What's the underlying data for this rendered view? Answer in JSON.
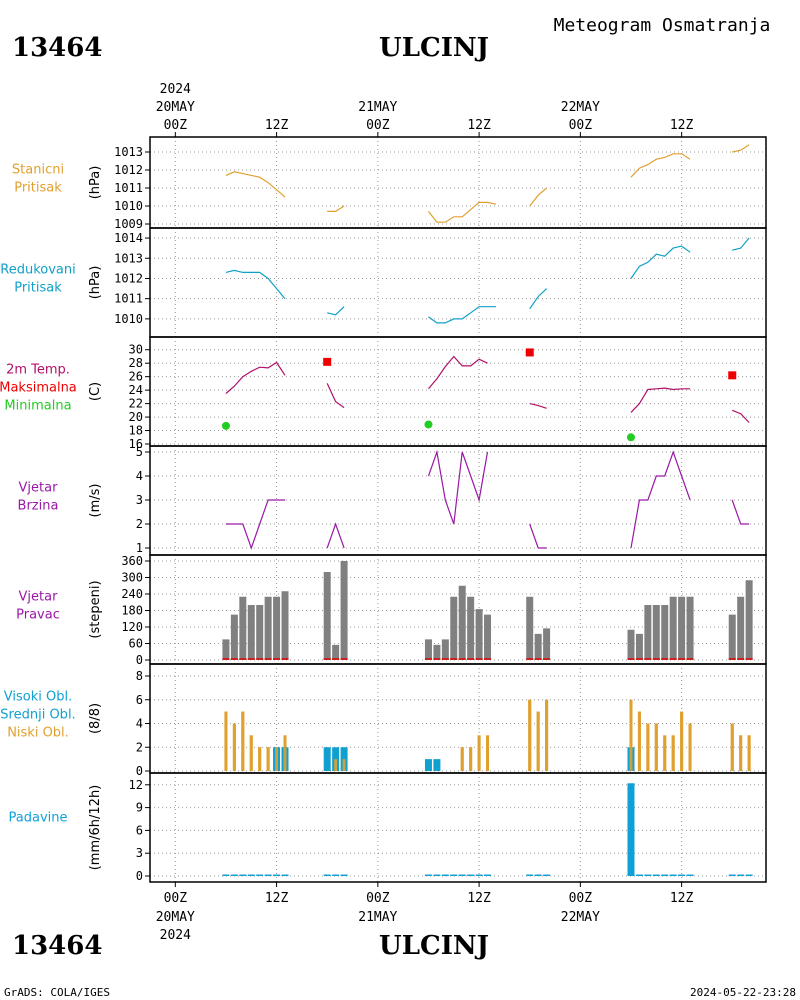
{
  "header": {
    "station_id": "13464",
    "station_name": "ULCINJ",
    "product": "Meteogram Osmatranja"
  },
  "footer": {
    "station_id": "13464",
    "station_name": "ULCINJ",
    "credit": "GrADS: COLA/IGES",
    "timestamp": "2024-05-22-23:28"
  },
  "time_axis": {
    "year": "2024",
    "ticks": [
      {
        "hour": 0,
        "label": "00Z",
        "date": "20MAY",
        "year": "2024"
      },
      {
        "hour": 12,
        "label": "12Z"
      },
      {
        "hour": 24,
        "label": "00Z",
        "date": "21MAY"
      },
      {
        "hour": 36,
        "label": "12Z"
      },
      {
        "hour": 48,
        "label": "00Z",
        "date": "22MAY"
      },
      {
        "hour": 60,
        "label": "12Z"
      }
    ],
    "range_hours": [
      -3,
      70
    ]
  },
  "colors": {
    "pressure_station": "#e0a030",
    "pressure_reduced": "#10a0c8",
    "temperature": "#b0106a",
    "tmax": "#ee0000",
    "tmin": "#22cc22",
    "wind": "#9b18a8",
    "wind_dir_bar": "#808080",
    "wind_dir_base": "#cc2020",
    "cloud_low": "#e0a030",
    "cloud_mid_high": "#10a0d0",
    "precip": "#10a0d8"
  },
  "chart_data": [
    {
      "type": "line",
      "title_lines": [
        "Stanicni",
        "Pritisak"
      ],
      "ylabel": "(hPa)",
      "ylim": [
        1009,
        1013.5
      ],
      "yticks": [
        1009,
        1010,
        1011,
        1012,
        1013
      ],
      "series": [
        {
          "segments": [
            [
              [
                6,
                1011.7
              ],
              [
                7,
                1011.9
              ],
              [
                8,
                1011.8
              ],
              [
                9,
                1011.7
              ],
              [
                10,
                1011.6
              ],
              [
                11,
                1011.3
              ],
              [
                12,
                1010.9
              ],
              [
                13,
                1010.5
              ]
            ],
            [
              [
                18,
                1009.7
              ],
              [
                19,
                1009.7
              ],
              [
                20,
                1010.0
              ]
            ],
            [
              [
                30,
                1009.7
              ],
              [
                31,
                1009.1
              ],
              [
                32,
                1009.1
              ],
              [
                33,
                1009.4
              ],
              [
                34,
                1009.4
              ],
              [
                35,
                1009.8
              ],
              [
                36,
                1010.2
              ],
              [
                37,
                1010.2
              ],
              [
                38,
                1010.1
              ]
            ],
            [
              [
                42,
                1010.0
              ],
              [
                43,
                1010.6
              ],
              [
                44,
                1011.0
              ]
            ],
            [
              [
                54,
                1011.6
              ],
              [
                55,
                1012.1
              ],
              [
                56,
                1012.3
              ],
              [
                57,
                1012.6
              ],
              [
                58,
                1012.7
              ],
              [
                59,
                1012.9
              ],
              [
                60,
                1012.9
              ],
              [
                61,
                1012.6
              ]
            ],
            [
              [
                66,
                1013.0
              ],
              [
                67,
                1013.1
              ],
              [
                68,
                1013.4
              ]
            ]
          ]
        }
      ]
    },
    {
      "type": "line",
      "title_lines": [
        "Redukovani",
        "Pritisak"
      ],
      "ylabel": "(hPa)",
      "ylim": [
        1009.4,
        1014.2
      ],
      "yticks": [
        1010,
        1011,
        1012,
        1013,
        1014
      ],
      "series": [
        {
          "segments": [
            [
              [
                6,
                1012.3
              ],
              [
                7,
                1012.4
              ],
              [
                8,
                1012.3
              ],
              [
                9,
                1012.3
              ],
              [
                10,
                1012.3
              ],
              [
                11,
                1012.0
              ],
              [
                12,
                1011.5
              ],
              [
                13,
                1011.0
              ]
            ],
            [
              [
                18,
                1010.3
              ],
              [
                19,
                1010.2
              ],
              [
                20,
                1010.6
              ]
            ],
            [
              [
                30,
                1010.1
              ],
              [
                31,
                1009.8
              ],
              [
                32,
                1009.8
              ],
              [
                33,
                1010.0
              ],
              [
                34,
                1010.0
              ],
              [
                35,
                1010.3
              ],
              [
                36,
                1010.6
              ],
              [
                37,
                1010.6
              ],
              [
                38,
                1010.6
              ]
            ],
            [
              [
                42,
                1010.5
              ],
              [
                43,
                1011.1
              ],
              [
                44,
                1011.5
              ]
            ],
            [
              [
                54,
                1012.0
              ],
              [
                55,
                1012.6
              ],
              [
                56,
                1012.8
              ],
              [
                57,
                1013.2
              ],
              [
                58,
                1013.1
              ],
              [
                59,
                1013.5
              ],
              [
                60,
                1013.6
              ],
              [
                61,
                1013.3
              ]
            ],
            [
              [
                66,
                1013.4
              ],
              [
                67,
                1013.5
              ],
              [
                68,
                1014.0
              ]
            ]
          ]
        }
      ]
    },
    {
      "type": "line",
      "title_lines": [
        "2m Temp.",
        "Maksimalna",
        "Minimalna"
      ],
      "ylabel": "(C)",
      "ylim": [
        16,
        31
      ],
      "yticks": [
        16,
        18,
        20,
        22,
        24,
        26,
        28,
        30
      ],
      "series": [
        {
          "name": "2m Temp.",
          "segments": [
            [
              [
                6,
                23.5
              ],
              [
                7,
                24.6
              ],
              [
                8,
                26.0
              ],
              [
                9,
                26.8
              ],
              [
                10,
                27.4
              ],
              [
                11,
                27.3
              ],
              [
                12,
                28.1
              ],
              [
                13,
                26.2
              ]
            ],
            [
              [
                18,
                25.0
              ],
              [
                19,
                22.3
              ],
              [
                20,
                21.4
              ]
            ],
            [
              [
                30,
                24.2
              ],
              [
                31,
                25.7
              ],
              [
                32,
                27.5
              ],
              [
                33,
                29.0
              ],
              [
                34,
                27.6
              ],
              [
                35,
                27.6
              ],
              [
                36,
                28.6
              ],
              [
                37,
                28.0
              ]
            ],
            [
              [
                42,
                22.0
              ],
              [
                43,
                21.7
              ],
              [
                44,
                21.3
              ]
            ],
            [
              [
                54,
                20.7
              ],
              [
                55,
                22.0
              ],
              [
                56,
                24.1
              ],
              [
                57,
                24.2
              ],
              [
                58,
                24.3
              ],
              [
                59,
                24.1
              ],
              [
                60,
                24.2
              ],
              [
                61,
                24.2
              ]
            ],
            [
              [
                66,
                21.0
              ],
              [
                67,
                20.5
              ],
              [
                68,
                19.2
              ]
            ]
          ]
        }
      ],
      "tmax": [
        [
          18,
          28.2
        ],
        [
          42,
          29.6
        ],
        [
          66,
          26.2
        ]
      ],
      "tmin": [
        [
          6,
          18.7
        ],
        [
          30,
          18.9
        ],
        [
          54,
          17.0
        ]
      ]
    },
    {
      "type": "line",
      "title_lines": [
        "Vjetar",
        "Brzina"
      ],
      "ylabel": "(m/s)",
      "ylim": [
        1,
        5
      ],
      "yticks": [
        1,
        2,
        3,
        4,
        5
      ],
      "series": [
        {
          "segments": [
            [
              [
                6,
                2
              ],
              [
                7,
                2
              ],
              [
                8,
                2
              ],
              [
                9,
                1
              ],
              [
                10,
                2
              ],
              [
                11,
                3
              ],
              [
                12,
                3
              ],
              [
                13,
                3
              ]
            ],
            [
              [
                18,
                1
              ],
              [
                19,
                2
              ],
              [
                20,
                1
              ]
            ],
            [
              [
                30,
                4
              ],
              [
                31,
                5
              ],
              [
                32,
                3
              ],
              [
                33,
                2
              ],
              [
                34,
                5
              ],
              [
                35,
                4
              ],
              [
                36,
                3
              ],
              [
                37,
                5
              ]
            ],
            [
              [
                42,
                2
              ],
              [
                43,
                1
              ],
              [
                44,
                1
              ]
            ],
            [
              [
                54,
                1
              ],
              [
                55,
                3
              ],
              [
                56,
                3
              ],
              [
                57,
                4
              ],
              [
                58,
                4
              ],
              [
                59,
                5
              ],
              [
                60,
                4
              ],
              [
                61,
                3
              ]
            ],
            [
              [
                66,
                3
              ],
              [
                67,
                2
              ],
              [
                68,
                2
              ]
            ]
          ]
        }
      ]
    },
    {
      "type": "bar",
      "title_lines": [
        "Vjetar",
        "Pravac"
      ],
      "ylabel": "(stepeni)",
      "ylim": [
        0,
        360
      ],
      "yticks": [
        0,
        60,
        120,
        180,
        240,
        300,
        360
      ],
      "x": [
        6,
        7,
        8,
        9,
        10,
        11,
        12,
        13,
        18,
        19,
        20,
        30,
        31,
        32,
        33,
        34,
        35,
        36,
        37,
        42,
        43,
        44,
        54,
        55,
        56,
        57,
        58,
        59,
        60,
        61,
        66,
        67,
        68
      ],
      "values": [
        75,
        165,
        230,
        200,
        200,
        230,
        230,
        250,
        320,
        55,
        360,
        75,
        55,
        75,
        230,
        270,
        230,
        185,
        165,
        230,
        95,
        115,
        110,
        95,
        200,
        200,
        200,
        230,
        230,
        230,
        165,
        230,
        290
      ]
    },
    {
      "type": "bar",
      "title_lines": [
        "Visoki Obl.",
        "Srednji Obl.",
        "Niski Obl."
      ],
      "ylabel": "(8/8)",
      "ylim": [
        0,
        8
      ],
      "yticks": [
        0,
        2,
        4,
        6,
        8
      ],
      "series": [
        {
          "name": "Niski Obl.",
          "x": [
            6,
            7,
            8,
            9,
            10,
            11,
            12,
            13,
            19,
            20,
            34,
            35,
            36,
            37,
            42,
            43,
            44,
            54,
            55,
            56,
            57,
            58,
            59,
            60,
            61,
            66,
            67,
            68
          ],
          "values": [
            5,
            4,
            5,
            3,
            2,
            2,
            2,
            3,
            1,
            1,
            2,
            2,
            3,
            3,
            6,
            5,
            6,
            6,
            5,
            4,
            4,
            3,
            3,
            5,
            4,
            4,
            3,
            3
          ]
        },
        {
          "name": "Srednji Obl.",
          "x": [
            12,
            13,
            18,
            19,
            20,
            30,
            31,
            54
          ],
          "values": [
            2,
            2,
            2,
            2,
            2,
            1,
            1,
            2
          ]
        }
      ]
    },
    {
      "type": "bar",
      "title_lines": [
        "Padavine"
      ],
      "ylabel": "(mm/6h/12h)",
      "ylim": [
        0,
        12.5
      ],
      "yticks": [
        0,
        3,
        6,
        9,
        12
      ],
      "x": [
        6,
        7,
        8,
        9,
        10,
        11,
        12,
        13,
        18,
        19,
        20,
        30,
        31,
        32,
        33,
        34,
        35,
        36,
        37,
        42,
        43,
        44,
        54,
        55,
        56,
        57,
        58,
        59,
        60,
        61,
        66,
        67,
        68
      ],
      "values": [
        0,
        0,
        0,
        0,
        0,
        0,
        0,
        0,
        0,
        0,
        0,
        0,
        0,
        0,
        0,
        0,
        0,
        0,
        0,
        0,
        0,
        0,
        12.2,
        0,
        0,
        0,
        0,
        0,
        0,
        0,
        0,
        0,
        0
      ]
    }
  ]
}
